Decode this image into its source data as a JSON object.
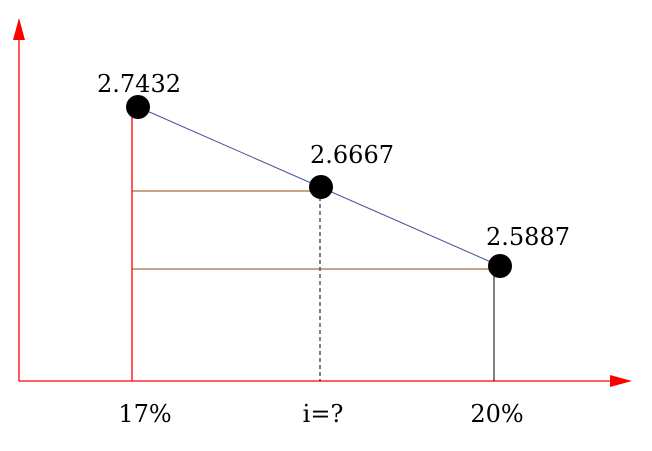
{
  "points": [
    {
      "label": "2.7432",
      "x_label": "17%"
    },
    {
      "label": "2.6667",
      "x_label": "i=?"
    },
    {
      "label": "2.5887",
      "x_label": "20%"
    }
  ],
  "colors": {
    "axes": "#ff0000",
    "connector": "#4a4a9a",
    "guides": "#8b4513",
    "points": "#000000"
  }
}
